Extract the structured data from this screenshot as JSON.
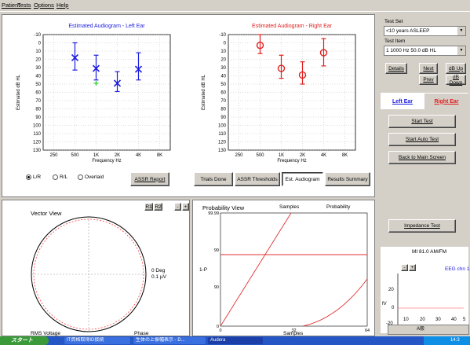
{
  "menu": [
    "Patient",
    "Tests",
    "Options",
    "Help"
  ],
  "left_chart": {
    "title": "Estimated Audiogram - Left Ear",
    "ylabel": "Estimated dB HL",
    "xlabel": "Frequency Hz",
    "color": "#1d1de0"
  },
  "right_chart": {
    "title": "Estimated Audiogram - Right Ear",
    "ylabel": "Estimated dB HL",
    "xlabel": "Frequency Hz",
    "color": "#e02020"
  },
  "chart_data": [
    {
      "type": "scatter",
      "title": "Estimated Audiogram - Left Ear",
      "xlabel": "Frequency Hz",
      "ylabel": "Estimated dB HL",
      "x_ticks": [
        "250",
        "500",
        "1K",
        "2K",
        "4K",
        "8K"
      ],
      "y_ticks": [
        -10,
        0,
        10,
        20,
        30,
        40,
        50,
        60,
        70,
        80,
        90,
        100,
        110,
        120,
        130
      ],
      "ylim": [
        -10,
        130
      ],
      "y_inverted": true,
      "grid": true,
      "marker": "x",
      "series": [
        {
          "color": "#1d1de0",
          "points": [
            {
              "x": "500",
              "y": 18,
              "err_low": 0,
              "err_high": 33
            },
            {
              "x": "1K",
              "y": 31,
              "err_low": 15,
              "err_high": 45
            },
            {
              "x": "2K",
              "y": 49,
              "err_low": 35,
              "err_high": 59
            },
            {
              "x": "4K",
              "y": 32,
              "err_low": 12,
              "err_high": 45
            }
          ]
        },
        {
          "color": "#22cc22",
          "marker": "+",
          "points": [
            {
              "x": "1K",
              "y": 49
            }
          ]
        }
      ]
    },
    {
      "type": "scatter",
      "title": "Estimated Audiogram - Right Ear",
      "xlabel": "Frequency Hz",
      "ylabel": "Estimated dB HL",
      "x_ticks": [
        "250",
        "500",
        "1K",
        "2K",
        "4K",
        "8K"
      ],
      "y_ticks": [
        -10,
        0,
        10,
        20,
        30,
        40,
        50,
        60,
        70,
        80,
        90,
        100,
        110,
        120,
        130
      ],
      "ylim": [
        -10,
        130
      ],
      "y_inverted": true,
      "grid": true,
      "marker": "o",
      "series": [
        {
          "color": "#e02020",
          "points": [
            {
              "x": "500",
              "y": 3,
              "err_low": -10,
              "err_high": 13
            },
            {
              "x": "1K",
              "y": 31,
              "err_low": 15,
              "err_high": 43
            },
            {
              "x": "2K",
              "y": 39,
              "err_low": 23,
              "err_high": 50
            },
            {
              "x": "4K",
              "y": 12,
              "err_low": -5,
              "err_high": 28
            }
          ]
        }
      ]
    }
  ],
  "radios": [
    {
      "label": "L/R",
      "selected": true
    },
    {
      "label": "R/L",
      "selected": false
    },
    {
      "label": "Overlaid",
      "selected": false
    }
  ],
  "buttons": {
    "assr_report": "ASSR Report",
    "trials_done": "Trials Done",
    "assr_thresholds": "ASSR Thresholds",
    "est_audiogram": "Est. Audiogram",
    "results_summary": "Results Summary"
  },
  "right_panel": {
    "test_set_label": "Test Set",
    "test_set_value": "<10 years ASLEEP",
    "test_item_label": "Test Item",
    "test_item_value": "1  1000 Hz   50.0  dB HL",
    "details": "Details",
    "next": "Next",
    "prev": "Prev",
    "db_up": "dB Up",
    "db_down": "dB Down",
    "left_ear": "Left Ear",
    "right_ear": "Right Ear",
    "start_test": "Start Test",
    "start_auto_test": "Start Auto Test",
    "back_main": "Back to Main Screen",
    "impedance_test": "Impedance Test",
    "mi_label": "MI 81.0  AM/FM",
    "eeg_label": "EEG chn 1",
    "small_chart": {
      "ylabel": "fV",
      "xlabel": "ms",
      "y_ticks": [
        "20",
        "0",
        "-20"
      ],
      "x_ticks": [
        "10",
        "20",
        "30",
        "40",
        "5"
      ]
    },
    "amp_buttons": [
      "-",
      "+"
    ]
  },
  "vector_view": {
    "title": "Vector View",
    "buttons": [
      "R1",
      "R2"
    ],
    "zoom_buttons": [
      "-",
      "+"
    ],
    "deg_label": "0 Deg",
    "uv_label": "0.1 µV",
    "rms_label": "RMS Voltage",
    "phase_label": "Phase"
  },
  "probability_view": {
    "title": "Probability View",
    "samples_label": "Samples",
    "probability_label": "Probability",
    "y_axis_label": "1-P",
    "y_ticks": [
      "99.99",
      "99",
      "90",
      "0"
    ],
    "x_ticks": [
      "0",
      "32",
      "64"
    ],
    "x_label": "Samples"
  },
  "taskbar": {
    "start": "スタート",
    "items": [
      "IT資格取得ID接続",
      "生体の上振幅表示 - D...",
      "Audera"
    ],
    "tray_time": "14:3",
    "ime": "A般"
  }
}
